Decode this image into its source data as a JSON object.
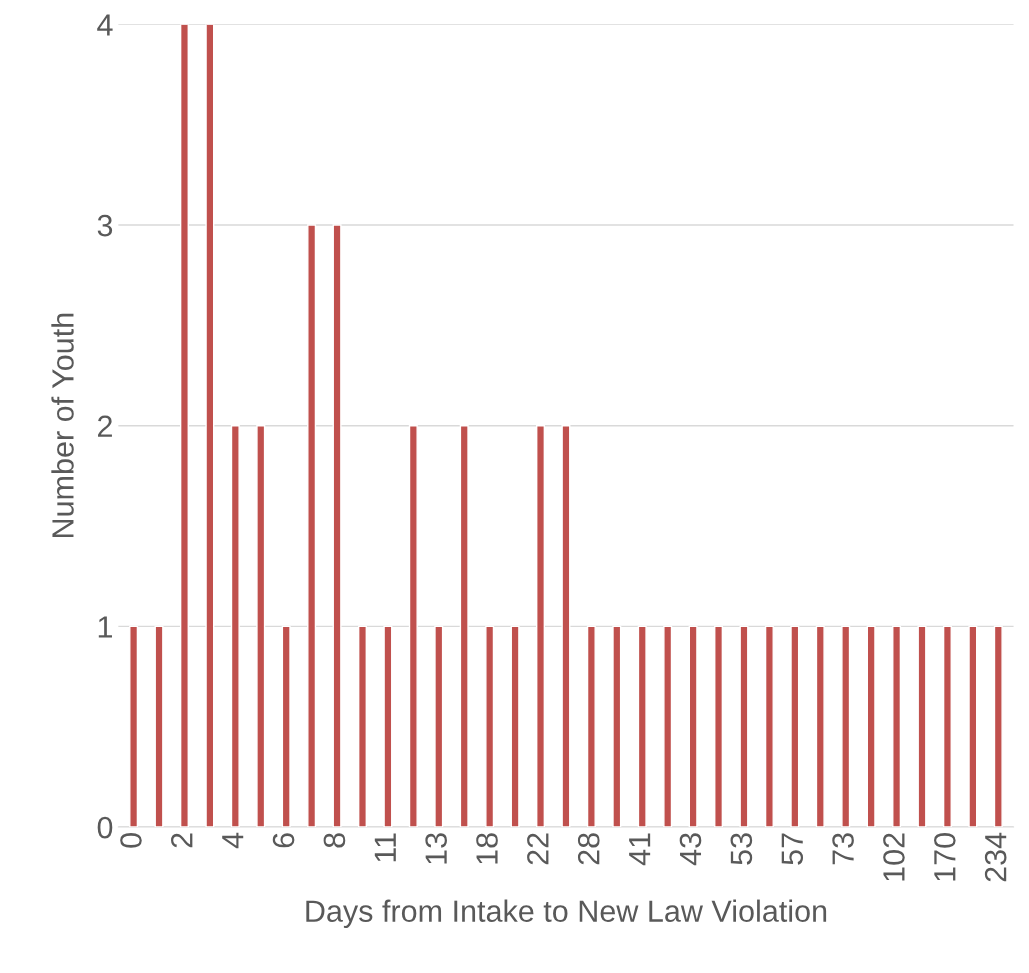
{
  "chart_data": {
    "type": "bar",
    "xlabel": "Days from Intake to New Law Violation",
    "ylabel": "Number of Youth",
    "categories": [
      "0",
      null,
      "2",
      null,
      "4",
      null,
      "6",
      null,
      "8",
      null,
      "11",
      null,
      "13",
      null,
      "18",
      null,
      "22",
      null,
      "28",
      null,
      "41",
      null,
      "43",
      null,
      "53",
      null,
      "57",
      null,
      "73",
      null,
      "102",
      null,
      "170",
      null,
      "234"
    ],
    "values": [
      1,
      1,
      4,
      4,
      2,
      2,
      1,
      3,
      3,
      1,
      1,
      2,
      1,
      2,
      1,
      1,
      2,
      2,
      1,
      1,
      1,
      1,
      1,
      1,
      1,
      1,
      1,
      1,
      1,
      1,
      1,
      1,
      1,
      1,
      1
    ],
    "color": "#c0504d",
    "ylim": [
      0,
      4
    ],
    "yticks": [
      0,
      1,
      2,
      3,
      4
    ],
    "grid": "y",
    "legend": false
  }
}
